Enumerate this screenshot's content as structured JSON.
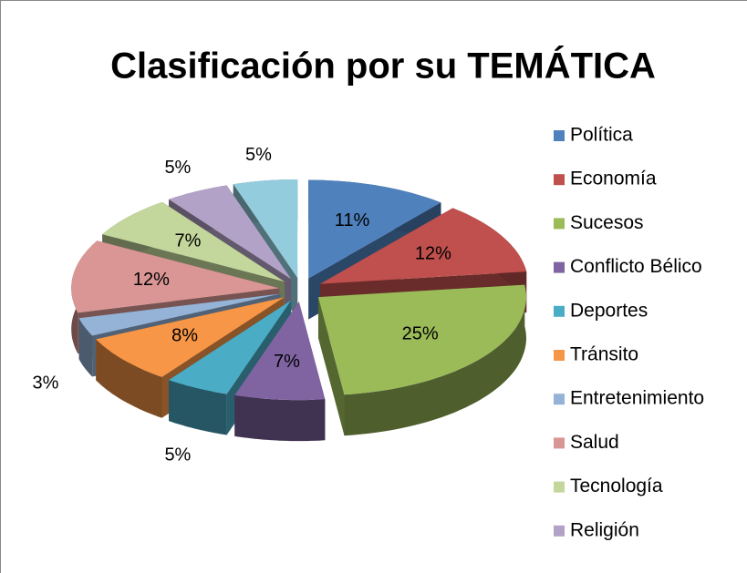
{
  "chart_data": {
    "type": "pie3d",
    "title": "Clasificación por su TEMÁTICA",
    "categories": [
      "Política",
      "Economía",
      "Sucesos",
      "Conflicto Bélico",
      "Deportes",
      "Tránsito",
      "Entretenimiento",
      "Salud",
      "Tecnología",
      "Religión",
      null
    ],
    "values": [
      11,
      12,
      25,
      7,
      5,
      8,
      3,
      12,
      7,
      5,
      5
    ],
    "value_labels": [
      "11%",
      "12%",
      "25%",
      "7%",
      "5%",
      "8%",
      "3%",
      "12%",
      "7%",
      "5%",
      "5%"
    ],
    "colors": [
      "#4f81bd",
      "#c0504d",
      "#9bbb59",
      "#8064a2",
      "#4bacc6",
      "#f79646",
      "#95b3d7",
      "#d99694",
      "#c3d69b",
      "#b3a2c7",
      "#93cddd"
    ],
    "legend": "right"
  }
}
